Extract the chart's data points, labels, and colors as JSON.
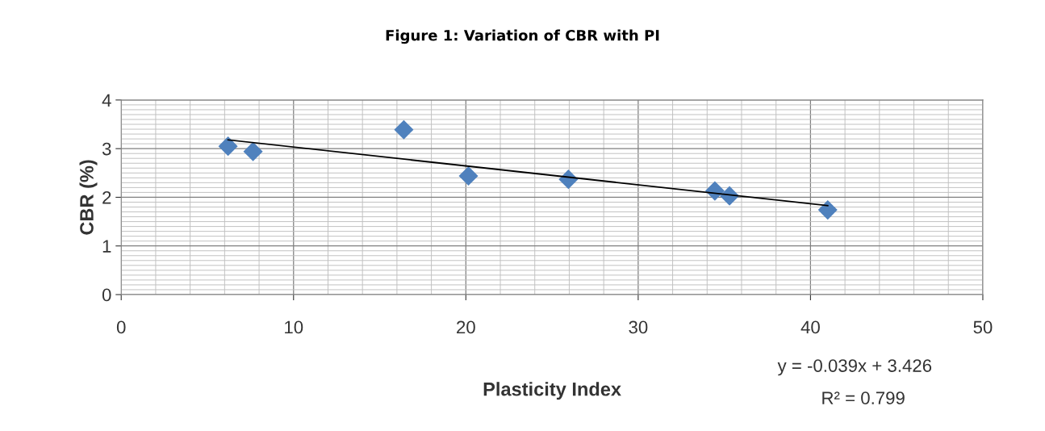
{
  "chart_data": {
    "type": "scatter",
    "title": "Figure 1: Variation of CBR with PI",
    "xlabel": "Plasticity Index",
    "ylabel": "CBR (%)",
    "x": [
      6.2,
      7.65,
      16.4,
      20.15,
      25.95,
      34.45,
      35.3,
      41.0
    ],
    "series": [
      {
        "color": "#4f81bd",
        "marker": "diamond",
        "values": [
          3.05,
          2.94,
          3.39,
          2.44,
          2.37,
          2.13,
          2.03,
          1.74
        ]
      },
      {
        "type": "line",
        "color": "#000000",
        "marker": "none",
        "line_style": "solid",
        "x": [
          6.2,
          41.0
        ],
        "values": [
          3.18,
          1.83
        ]
      }
    ],
    "xlim": [
      0,
      50
    ],
    "xticks": [
      0,
      10,
      20,
      30,
      40,
      50
    ],
    "ylim": [
      0,
      4
    ],
    "yticks": [
      0,
      1,
      2,
      3,
      4
    ],
    "grid": true,
    "legend": false,
    "annotations": [
      "y = -0.039x + 3.426",
      "R² = 0.799"
    ]
  }
}
